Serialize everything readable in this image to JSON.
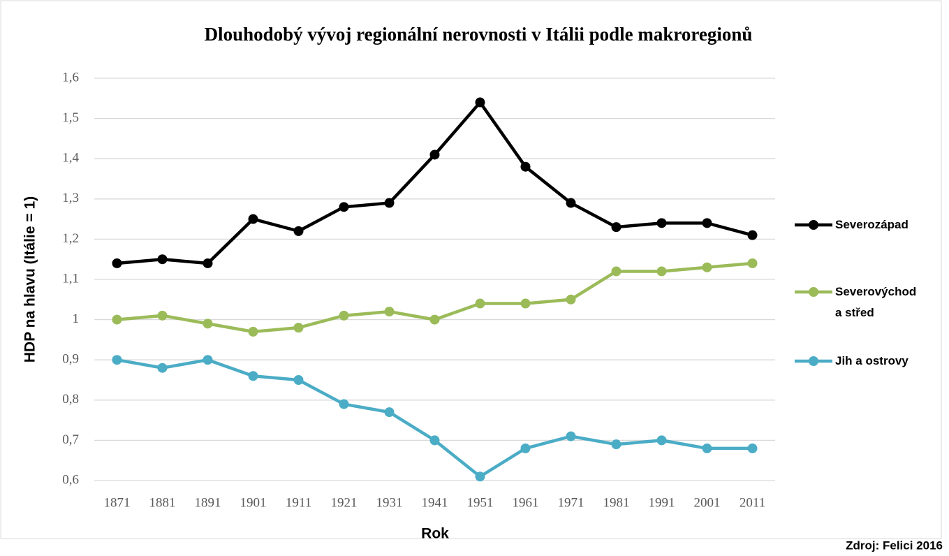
{
  "chart_data": {
    "type": "line",
    "title": "Dlouhodobý vývoj regionální nerovnosti v Itálii podle makroregionů",
    "xlabel": "Rok",
    "ylabel": "HDP na hlavu (Itálie = 1)",
    "source": "Zdroj: Felici 2016",
    "categories": [
      "1871",
      "1881",
      "1891",
      "1901",
      "1911",
      "1921",
      "1931",
      "1941",
      "1951",
      "1961",
      "1971",
      "1981",
      "1991",
      "2001",
      "2011"
    ],
    "series": [
      {
        "name": "Severozápad",
        "color": "#000000",
        "values": [
          1.14,
          1.15,
          1.14,
          1.25,
          1.22,
          1.28,
          1.29,
          1.41,
          1.54,
          1.38,
          1.29,
          1.23,
          1.24,
          1.24,
          1.21
        ]
      },
      {
        "name": "Severovýchod a střed",
        "color": "#9bbb59",
        "values": [
          1.0,
          1.01,
          0.99,
          0.97,
          0.98,
          1.01,
          1.02,
          1.0,
          1.04,
          1.04,
          1.05,
          1.12,
          1.12,
          1.13,
          1.14
        ]
      },
      {
        "name": "Jih a ostrovy",
        "color": "#4bacc6",
        "values": [
          0.9,
          0.88,
          0.9,
          0.86,
          0.85,
          0.79,
          0.77,
          0.7,
          0.61,
          0.68,
          0.71,
          0.69,
          0.7,
          0.68,
          0.68
        ]
      }
    ],
    "ylim": [
      0.6,
      1.6
    ],
    "yticks": [
      {
        "value": 0.6,
        "label": "0,6"
      },
      {
        "value": 0.7,
        "label": "0,7"
      },
      {
        "value": 0.8,
        "label": "0,8"
      },
      {
        "value": 0.9,
        "label": "0,9"
      },
      1,
      {
        "value": 1.1,
        "label": "1,1"
      },
      {
        "value": 1.2,
        "label": "1,2"
      },
      {
        "value": 1.3,
        "label": "1,3"
      },
      {
        "value": 1.4,
        "label": "1,4"
      },
      {
        "value": 1.5,
        "label": "1,5"
      },
      {
        "value": 1.6,
        "label": "1,6"
      }
    ],
    "grid": true,
    "legend": "right"
  }
}
